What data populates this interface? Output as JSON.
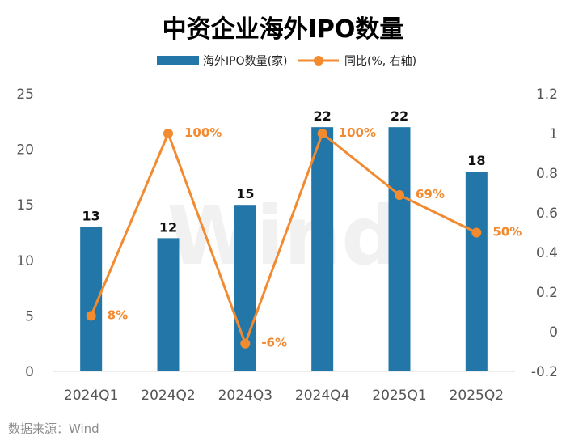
{
  "chart_data": {
    "type": "bar",
    "title": "中资企业海外IPO数量",
    "categories": [
      "2024Q1",
      "2024Q2",
      "2024Q3",
      "2024Q4",
      "2025Q1",
      "2025Q2"
    ],
    "series": [
      {
        "name": "海外IPO数量(家)",
        "type": "bar",
        "axis": "left",
        "values": [
          13,
          12,
          15,
          22,
          22,
          18
        ],
        "labels": [
          "13",
          "12",
          "15",
          "22",
          "22",
          "18"
        ],
        "color": "#2277a8"
      },
      {
        "name": "同比(%, 右轴)",
        "type": "line",
        "axis": "right",
        "values": [
          0.08,
          1.0,
          -0.06,
          1.0,
          0.69,
          0.5
        ],
        "labels": [
          "8%",
          "100%",
          "-6%",
          "100%",
          "69%",
          "50%"
        ],
        "color": "#f28a30"
      }
    ],
    "left_axis": {
      "min": 0,
      "max": 25,
      "ticks": [
        "0",
        "5",
        "10",
        "15",
        "20",
        "25"
      ]
    },
    "right_axis": {
      "min": -0.2,
      "max": 1.2,
      "ticks": [
        "-0.2",
        "0",
        "0.2",
        "0.4",
        "0.6",
        "0.8",
        "1",
        "1.2"
      ]
    },
    "watermark": "Wind",
    "grid": false,
    "legend": "top"
  },
  "source": "数据来源：Wind"
}
